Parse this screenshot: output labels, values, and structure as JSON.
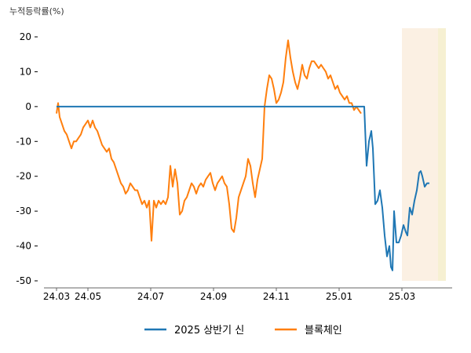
{
  "chart_data": {
    "type": "line",
    "ylabel": "누적등락률(%)",
    "xlabel": "",
    "ylim": [
      -50,
      22
    ],
    "yticks": [
      20,
      10,
      0,
      -10,
      -20,
      -30,
      -40,
      -50
    ],
    "xlim": [
      0,
      26
    ],
    "xticks": [
      {
        "x": 0,
        "label": "24.03"
      },
      {
        "x": 2,
        "label": "24.05"
      },
      {
        "x": 6,
        "label": "24.07"
      },
      {
        "x": 10,
        "label": "24.09"
      },
      {
        "x": 14,
        "label": "24.11"
      },
      {
        "x": 18,
        "label": "25.01"
      },
      {
        "x": 22,
        "label": "25.03"
      }
    ],
    "shaded_regions": [
      {
        "from": 22.0,
        "to": 24.3,
        "color": "#fbf0e3"
      },
      {
        "from": 24.3,
        "to": 24.8,
        "color": "#f6f0d2"
      }
    ],
    "series": [
      {
        "name": "2025 상반기 신",
        "color": "#1f77b4",
        "points": [
          [
            0.0,
            0
          ],
          [
            19.6,
            0
          ],
          [
            19.75,
            -17
          ],
          [
            19.9,
            -10
          ],
          [
            20.05,
            -7
          ],
          [
            20.15,
            -12
          ],
          [
            20.3,
            -28
          ],
          [
            20.45,
            -27
          ],
          [
            20.6,
            -24
          ],
          [
            20.75,
            -29
          ],
          [
            20.9,
            -37
          ],
          [
            21.05,
            -43
          ],
          [
            21.2,
            -40
          ],
          [
            21.3,
            -46
          ],
          [
            21.4,
            -47
          ],
          [
            21.5,
            -30
          ],
          [
            21.65,
            -39
          ],
          [
            21.8,
            -39
          ],
          [
            21.95,
            -37
          ],
          [
            22.1,
            -34
          ],
          [
            22.25,
            -36
          ],
          [
            22.35,
            -37
          ],
          [
            22.5,
            -29
          ],
          [
            22.65,
            -31
          ],
          [
            22.8,
            -27
          ],
          [
            22.95,
            -24
          ],
          [
            23.1,
            -19
          ],
          [
            23.2,
            -18.5
          ],
          [
            23.3,
            -20
          ],
          [
            23.45,
            -23
          ],
          [
            23.6,
            -22
          ],
          [
            23.75,
            -22
          ]
        ]
      },
      {
        "name": "블록체인",
        "color": "#ff7f0e",
        "points": [
          [
            0.0,
            -2
          ],
          [
            0.1,
            1
          ],
          [
            0.2,
            -3
          ],
          [
            0.35,
            -5
          ],
          [
            0.5,
            -7
          ],
          [
            0.65,
            -8
          ],
          [
            0.8,
            -10
          ],
          [
            0.95,
            -12
          ],
          [
            1.1,
            -10
          ],
          [
            1.25,
            -10
          ],
          [
            1.4,
            -9
          ],
          [
            1.55,
            -8
          ],
          [
            1.7,
            -6
          ],
          [
            1.85,
            -5
          ],
          [
            2.0,
            -4
          ],
          [
            2.15,
            -6
          ],
          [
            2.3,
            -4
          ],
          [
            2.45,
            -6
          ],
          [
            2.6,
            -7
          ],
          [
            2.75,
            -9
          ],
          [
            2.9,
            -11
          ],
          [
            3.05,
            -12
          ],
          [
            3.2,
            -13
          ],
          [
            3.35,
            -12
          ],
          [
            3.5,
            -15
          ],
          [
            3.65,
            -16
          ],
          [
            3.8,
            -18
          ],
          [
            3.95,
            -20
          ],
          [
            4.1,
            -22
          ],
          [
            4.25,
            -23
          ],
          [
            4.4,
            -25
          ],
          [
            4.55,
            -24
          ],
          [
            4.7,
            -22
          ],
          [
            4.85,
            -23
          ],
          [
            5.0,
            -24
          ],
          [
            5.15,
            -24
          ],
          [
            5.3,
            -26
          ],
          [
            5.45,
            -28
          ],
          [
            5.6,
            -27
          ],
          [
            5.75,
            -29
          ],
          [
            5.9,
            -27
          ],
          [
            6.05,
            -38.5
          ],
          [
            6.2,
            -27
          ],
          [
            6.35,
            -29
          ],
          [
            6.5,
            -27
          ],
          [
            6.65,
            -28
          ],
          [
            6.8,
            -27
          ],
          [
            6.95,
            -28
          ],
          [
            7.1,
            -26
          ],
          [
            7.25,
            -17
          ],
          [
            7.4,
            -23
          ],
          [
            7.55,
            -18
          ],
          [
            7.7,
            -22
          ],
          [
            7.85,
            -31
          ],
          [
            8.0,
            -30
          ],
          [
            8.15,
            -27
          ],
          [
            8.3,
            -26
          ],
          [
            8.45,
            -24
          ],
          [
            8.6,
            -22
          ],
          [
            8.75,
            -23
          ],
          [
            8.9,
            -25
          ],
          [
            9.05,
            -23
          ],
          [
            9.2,
            -22
          ],
          [
            9.35,
            -23
          ],
          [
            9.5,
            -21
          ],
          [
            9.65,
            -20
          ],
          [
            9.8,
            -19
          ],
          [
            9.95,
            -22
          ],
          [
            10.1,
            -24
          ],
          [
            10.25,
            -22
          ],
          [
            10.4,
            -21
          ],
          [
            10.55,
            -20
          ],
          [
            10.7,
            -22
          ],
          [
            10.85,
            -23
          ],
          [
            11.0,
            -28
          ],
          [
            11.15,
            -35
          ],
          [
            11.3,
            -36
          ],
          [
            11.45,
            -32
          ],
          [
            11.6,
            -26
          ],
          [
            11.75,
            -24
          ],
          [
            11.9,
            -22
          ],
          [
            12.05,
            -20
          ],
          [
            12.2,
            -15
          ],
          [
            12.35,
            -17
          ],
          [
            12.5,
            -22
          ],
          [
            12.65,
            -26
          ],
          [
            12.8,
            -21
          ],
          [
            12.95,
            -18
          ],
          [
            13.1,
            -15
          ],
          [
            13.25,
            0
          ],
          [
            13.4,
            5
          ],
          [
            13.55,
            9
          ],
          [
            13.7,
            8
          ],
          [
            13.85,
            5
          ],
          [
            14.0,
            1
          ],
          [
            14.15,
            2
          ],
          [
            14.3,
            4
          ],
          [
            14.45,
            7
          ],
          [
            14.6,
            14
          ],
          [
            14.75,
            19
          ],
          [
            14.9,
            14
          ],
          [
            15.05,
            10
          ],
          [
            15.2,
            7
          ],
          [
            15.35,
            5
          ],
          [
            15.5,
            8
          ],
          [
            15.65,
            12
          ],
          [
            15.8,
            9
          ],
          [
            15.95,
            8
          ],
          [
            16.1,
            11
          ],
          [
            16.25,
            13
          ],
          [
            16.4,
            13
          ],
          [
            16.55,
            12
          ],
          [
            16.7,
            11
          ],
          [
            16.85,
            12
          ],
          [
            17.0,
            11
          ],
          [
            17.15,
            10
          ],
          [
            17.3,
            8
          ],
          [
            17.45,
            9
          ],
          [
            17.6,
            7
          ],
          [
            17.75,
            5
          ],
          [
            17.9,
            6
          ],
          [
            18.05,
            4
          ],
          [
            18.2,
            3
          ],
          [
            18.35,
            2
          ],
          [
            18.5,
            3
          ],
          [
            18.65,
            1
          ],
          [
            18.8,
            1
          ],
          [
            18.95,
            -1
          ],
          [
            19.1,
            0
          ],
          [
            19.25,
            -1
          ],
          [
            19.4,
            -2
          ]
        ]
      }
    ]
  }
}
